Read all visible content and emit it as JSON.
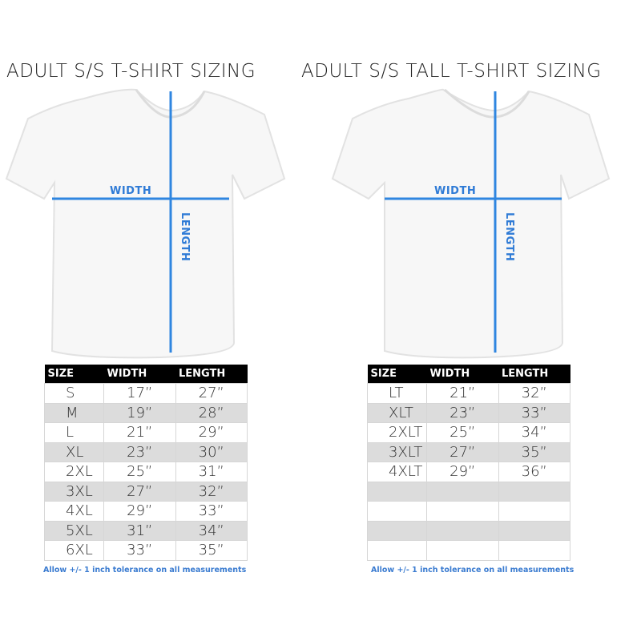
{
  "left": {
    "title": "ADULT S/S T-SHIRT SIZING",
    "width_label": "WIDTH",
    "length_label": "LENGTH",
    "columns": [
      "SIZE",
      "WIDTH",
      "LENGTH"
    ],
    "rows": [
      [
        "S",
        "17”",
        "27”"
      ],
      [
        "M",
        "19”",
        "28”"
      ],
      [
        "L",
        "21”",
        "29”"
      ],
      [
        "XL",
        "23”",
        "30”"
      ],
      [
        "2XL",
        "25”",
        "31”"
      ],
      [
        "3XL",
        "27”",
        "32”"
      ],
      [
        "4XL",
        "29”",
        "33”"
      ],
      [
        "5XL",
        "31”",
        "34”"
      ],
      [
        "6XL",
        "33”",
        "35”"
      ]
    ],
    "note": "Allow +/- 1 inch tolerance on all measurements"
  },
  "right": {
    "title": "ADULT S/S TALL T-SHIRT SIZING",
    "width_label": "WIDTH",
    "length_label": "LENGTH",
    "columns": [
      "SIZE",
      "WIDTH",
      "LENGTH"
    ],
    "rows": [
      [
        "LT",
        "21”",
        "32”"
      ],
      [
        "XLT",
        "23”",
        "33”"
      ],
      [
        "2XLT",
        "25”",
        "34”"
      ],
      [
        "3XLT",
        "27”",
        "35”"
      ],
      [
        "4XLT",
        "29”",
        "36”"
      ],
      [
        "",
        "",
        ""
      ],
      [
        "",
        "",
        ""
      ],
      [
        "",
        "",
        ""
      ],
      [
        "",
        "",
        ""
      ]
    ],
    "note": "Allow +/- 1 inch tolerance on all measurements"
  },
  "colors": {
    "measure_line": "#2f86e0",
    "header_bg": "#000000",
    "stripe": "#dcdcdc",
    "note": "#3a7bd0"
  }
}
